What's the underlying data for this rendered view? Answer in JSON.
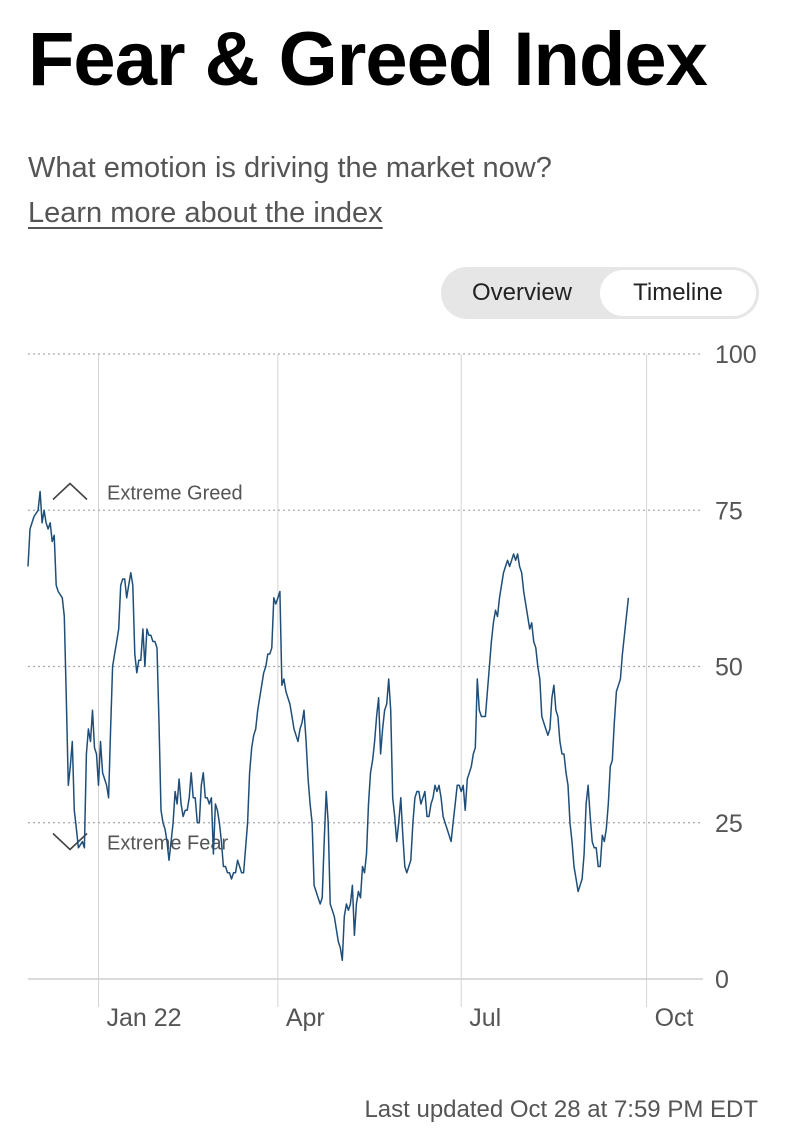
{
  "header": {
    "title": "Fear & Greed Index",
    "subtitle": "What emotion is driving the market now?",
    "learn_more": "Learn more about the index"
  },
  "toggle": {
    "options": [
      "Overview",
      "Timeline"
    ],
    "selected": "Timeline"
  },
  "footer": {
    "last_updated": "Last updated Oct 28 at 7:59 PM EDT"
  },
  "colors": {
    "line": "#1f4e79",
    "grid": "#aaaaaa",
    "text": "#555555"
  },
  "chart_data": {
    "type": "line",
    "ylim": [
      0,
      100
    ],
    "yticks": [
      "100",
      "75",
      "50",
      "25",
      "0"
    ],
    "ytick_values": [
      100,
      75,
      50,
      25,
      0
    ],
    "x_ticks": [
      {
        "label": "Jan 22",
        "day": 35
      },
      {
        "label": "Apr",
        "day": 124
      },
      {
        "label": "Jul",
        "day": 215
      },
      {
        "label": "Oct",
        "day": 307
      }
    ],
    "xlim_days": [
      0,
      335
    ],
    "annotations": [
      {
        "label": "Extreme Greed",
        "value": 78,
        "direction": "up"
      },
      {
        "label": "Extreme Fear",
        "value": 22,
        "direction": "down"
      }
    ],
    "series": [
      {
        "points": [
          [
            0,
            66
          ],
          [
            1,
            72
          ],
          [
            3,
            74
          ],
          [
            5,
            75
          ],
          [
            6,
            78
          ],
          [
            7,
            73
          ],
          [
            8,
            75
          ],
          [
            9,
            73
          ],
          [
            10,
            72
          ],
          [
            11,
            73
          ],
          [
            12,
            70
          ],
          [
            13,
            71
          ],
          [
            14,
            63
          ],
          [
            15,
            62
          ],
          [
            17,
            61
          ],
          [
            18,
            58
          ],
          [
            19,
            45
          ],
          [
            20,
            31
          ],
          [
            21,
            34
          ],
          [
            22,
            38
          ],
          [
            23,
            27
          ],
          [
            24,
            24
          ],
          [
            25,
            21
          ],
          [
            27,
            22
          ],
          [
            28,
            21
          ],
          [
            29,
            36
          ],
          [
            30,
            40
          ],
          [
            31,
            38
          ],
          [
            32,
            43
          ],
          [
            33,
            37
          ],
          [
            34,
            36
          ],
          [
            35,
            31
          ],
          [
            36,
            38
          ],
          [
            37,
            33
          ],
          [
            38,
            32
          ],
          [
            39,
            31
          ],
          [
            40,
            29
          ],
          [
            41,
            40
          ],
          [
            42,
            50
          ],
          [
            43,
            52
          ],
          [
            44,
            54
          ],
          [
            45,
            56
          ],
          [
            46,
            63
          ],
          [
            47,
            64
          ],
          [
            48,
            64
          ],
          [
            49,
            61
          ],
          [
            50,
            63
          ],
          [
            51,
            65
          ],
          [
            52,
            63
          ],
          [
            53,
            52
          ],
          [
            54,
            49
          ],
          [
            55,
            51
          ],
          [
            56,
            51
          ],
          [
            57,
            56
          ],
          [
            58,
            50
          ],
          [
            59,
            56
          ],
          [
            60,
            55
          ],
          [
            61,
            55
          ],
          [
            62,
            54
          ],
          [
            63,
            54
          ],
          [
            64,
            53
          ],
          [
            65,
            41
          ],
          [
            66,
            27
          ],
          [
            67,
            25
          ],
          [
            68,
            24
          ],
          [
            69,
            22
          ],
          [
            70,
            19
          ],
          [
            71,
            22
          ],
          [
            72,
            25
          ],
          [
            73,
            30
          ],
          [
            74,
            28
          ],
          [
            75,
            32
          ],
          [
            76,
            28
          ],
          [
            77,
            26
          ],
          [
            78,
            27
          ],
          [
            79,
            27
          ],
          [
            80,
            29
          ],
          [
            81,
            33
          ],
          [
            82,
            29
          ],
          [
            83,
            29
          ],
          [
            84,
            25
          ],
          [
            85,
            25
          ],
          [
            86,
            31
          ],
          [
            87,
            33
          ],
          [
            88,
            29
          ],
          [
            89,
            29
          ],
          [
            90,
            28
          ],
          [
            91,
            29
          ],
          [
            92,
            20
          ],
          [
            93,
            28
          ],
          [
            94,
            27
          ],
          [
            95,
            25
          ],
          [
            96,
            22
          ],
          [
            97,
            18
          ],
          [
            98,
            18
          ],
          [
            99,
            17
          ],
          [
            100,
            17
          ],
          [
            101,
            16
          ],
          [
            102,
            17
          ],
          [
            103,
            17
          ],
          [
            104,
            19
          ],
          [
            105,
            18
          ],
          [
            106,
            17
          ],
          [
            107,
            17
          ],
          [
            108,
            21
          ],
          [
            109,
            25
          ],
          [
            110,
            33
          ],
          [
            111,
            37
          ],
          [
            112,
            39
          ],
          [
            113,
            40
          ],
          [
            114,
            43
          ],
          [
            115,
            45
          ],
          [
            116,
            47
          ],
          [
            117,
            49
          ],
          [
            118,
            50
          ],
          [
            119,
            52
          ],
          [
            120,
            52
          ],
          [
            121,
            53
          ],
          [
            122,
            61
          ],
          [
            123,
            60
          ],
          [
            124,
            61
          ],
          [
            125,
            62
          ],
          [
            126,
            47
          ],
          [
            127,
            48
          ],
          [
            128,
            46
          ],
          [
            129,
            45
          ],
          [
            130,
            44
          ],
          [
            131,
            42
          ],
          [
            132,
            40
          ],
          [
            133,
            39
          ],
          [
            134,
            38
          ],
          [
            135,
            40
          ],
          [
            136,
            41
          ],
          [
            137,
            43
          ],
          [
            138,
            38
          ],
          [
            139,
            32
          ],
          [
            140,
            28
          ],
          [
            141,
            25
          ],
          [
            142,
            15
          ],
          [
            143,
            14
          ],
          [
            144,
            13
          ],
          [
            145,
            12
          ],
          [
            146,
            13
          ],
          [
            147,
            22
          ],
          [
            148,
            30
          ],
          [
            149,
            25
          ],
          [
            150,
            12
          ],
          [
            151,
            11
          ],
          [
            152,
            10
          ],
          [
            153,
            8
          ],
          [
            154,
            6
          ],
          [
            155,
            5
          ],
          [
            156,
            3
          ],
          [
            157,
            10
          ],
          [
            158,
            12
          ],
          [
            159,
            11
          ],
          [
            160,
            12
          ],
          [
            161,
            15
          ],
          [
            162,
            7
          ],
          [
            163,
            12
          ],
          [
            164,
            14
          ],
          [
            165,
            13
          ],
          [
            166,
            18
          ],
          [
            167,
            17
          ],
          [
            168,
            20
          ],
          [
            169,
            28
          ],
          [
            170,
            33
          ],
          [
            171,
            35
          ],
          [
            172,
            38
          ],
          [
            173,
            42
          ],
          [
            174,
            45
          ],
          [
            175,
            36
          ],
          [
            176,
            40
          ],
          [
            177,
            43
          ],
          [
            178,
            44
          ],
          [
            179,
            48
          ],
          [
            180,
            43
          ],
          [
            181,
            29
          ],
          [
            182,
            26
          ],
          [
            183,
            22
          ],
          [
            184,
            25
          ],
          [
            185,
            29
          ],
          [
            186,
            23
          ],
          [
            187,
            18
          ],
          [
            188,
            17
          ],
          [
            189,
            18
          ],
          [
            190,
            19
          ],
          [
            191,
            25
          ],
          [
            192,
            29
          ],
          [
            193,
            30
          ],
          [
            194,
            30
          ],
          [
            195,
            28
          ],
          [
            196,
            29
          ],
          [
            197,
            30
          ],
          [
            198,
            26
          ],
          [
            199,
            26
          ],
          [
            200,
            28
          ],
          [
            201,
            29
          ],
          [
            202,
            31
          ],
          [
            203,
            30
          ],
          [
            204,
            31
          ],
          [
            205,
            29
          ],
          [
            206,
            26
          ],
          [
            207,
            25
          ],
          [
            208,
            24
          ],
          [
            209,
            23
          ],
          [
            210,
            22
          ],
          [
            211,
            25
          ],
          [
            212,
            28
          ],
          [
            213,
            31
          ],
          [
            214,
            31
          ],
          [
            215,
            30
          ],
          [
            216,
            31
          ],
          [
            217,
            27
          ],
          [
            218,
            32
          ],
          [
            219,
            33
          ],
          [
            220,
            34
          ],
          [
            221,
            36
          ],
          [
            222,
            37
          ],
          [
            223,
            48
          ],
          [
            224,
            43
          ],
          [
            225,
            42
          ],
          [
            226,
            42
          ],
          [
            227,
            42
          ],
          [
            228,
            46
          ],
          [
            229,
            50
          ],
          [
            230,
            54
          ],
          [
            231,
            57
          ],
          [
            232,
            59
          ],
          [
            233,
            58
          ],
          [
            234,
            61
          ],
          [
            235,
            63
          ],
          [
            236,
            65
          ],
          [
            237,
            66
          ],
          [
            238,
            67
          ],
          [
            239,
            66
          ],
          [
            240,
            67
          ],
          [
            241,
            68
          ],
          [
            242,
            67
          ],
          [
            243,
            68
          ],
          [
            244,
            66
          ],
          [
            245,
            65
          ],
          [
            246,
            62
          ],
          [
            247,
            60
          ],
          [
            248,
            58
          ],
          [
            249,
            56
          ],
          [
            250,
            57
          ],
          [
            251,
            54
          ],
          [
            252,
            53
          ],
          [
            253,
            50
          ],
          [
            254,
            48
          ],
          [
            255,
            42
          ],
          [
            256,
            41
          ],
          [
            257,
            40
          ],
          [
            258,
            39
          ],
          [
            259,
            40
          ],
          [
            260,
            45
          ],
          [
            261,
            47
          ],
          [
            262,
            43
          ],
          [
            263,
            42
          ],
          [
            264,
            38
          ],
          [
            265,
            36
          ],
          [
            266,
            36
          ],
          [
            267,
            33
          ],
          [
            268,
            31
          ],
          [
            269,
            25
          ],
          [
            270,
            22
          ],
          [
            271,
            18
          ],
          [
            272,
            16
          ],
          [
            273,
            14
          ],
          [
            274,
            15
          ],
          [
            275,
            16
          ],
          [
            276,
            20
          ],
          [
            277,
            28
          ],
          [
            278,
            31
          ],
          [
            279,
            26
          ],
          [
            280,
            22
          ],
          [
            281,
            21
          ],
          [
            282,
            21
          ],
          [
            283,
            18
          ],
          [
            284,
            18
          ],
          [
            285,
            23
          ],
          [
            286,
            22
          ],
          [
            287,
            24
          ],
          [
            288,
            28
          ],
          [
            289,
            34
          ],
          [
            290,
            35
          ],
          [
            291,
            41
          ],
          [
            292,
            46
          ],
          [
            293,
            47
          ],
          [
            294,
            48
          ],
          [
            295,
            52
          ],
          [
            296,
            55
          ],
          [
            297,
            58
          ],
          [
            298,
            61
          ]
        ]
      }
    ]
  }
}
